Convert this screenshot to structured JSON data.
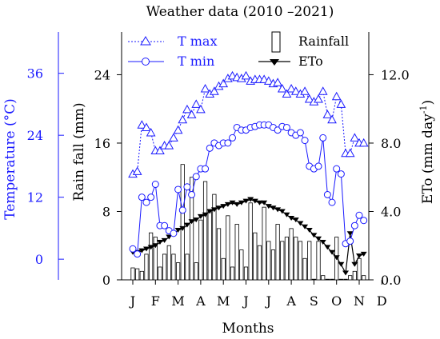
{
  "chart_data": {
    "type": "line",
    "title": "Weather data (2010 –2021)",
    "xlabel": "Months",
    "x_tick_labels": [
      "J",
      "F",
      "M",
      "A",
      "M",
      "J",
      "J",
      "A",
      "S",
      "O",
      "N",
      "D"
    ],
    "temp_axis": {
      "label": "Temperature (°C)",
      "ticks": [
        0,
        12,
        24,
        36
      ],
      "range": [
        -4,
        44
      ],
      "color": "#1a1aff"
    },
    "rain_axis": {
      "label": "Rain fall (mm)",
      "ticks": [
        0,
        8,
        16,
        24
      ],
      "range": [
        0,
        29
      ]
    },
    "eto_axis": {
      "label_main": "ETo (mm day",
      "label_sup": "-1",
      "label_close": ")",
      "ticks": [
        "0.0",
        "4.0",
        "8.0",
        "12.0"
      ],
      "tick_values": [
        0,
        4,
        8,
        12
      ],
      "range": [
        0,
        14.5
      ]
    },
    "legend": {
      "tmax": "T max",
      "tmin": "T min",
      "rainfall": "Rainfall",
      "eto": "ETo"
    },
    "colors": {
      "temperature": "#1a1aff",
      "eto": "#000000",
      "rainfall_fill": "#ffffff"
    },
    "series": [
      {
        "name": "T max",
        "axis": "temperature",
        "x": [
          1.0,
          1.2,
          1.4,
          1.6,
          1.8,
          2.0,
          2.2,
          2.4,
          2.6,
          2.8,
          3.0,
          3.2,
          3.4,
          3.6,
          3.8,
          4.0,
          4.2,
          4.4,
          4.6,
          4.8,
          5.0,
          5.2,
          5.4,
          5.6,
          5.8,
          6.0,
          6.2,
          6.4,
          6.6,
          6.8,
          7.0,
          7.2,
          7.4,
          7.6,
          7.8,
          8.0,
          8.2,
          8.4,
          8.6,
          8.8,
          9.0,
          9.2,
          9.4,
          9.6,
          9.8,
          10.0,
          10.2,
          10.4,
          10.6,
          10.8,
          11.0,
          11.2
        ],
        "values": [
          16.5,
          17.0,
          26.0,
          25.5,
          24.5,
          21.0,
          21.0,
          22.0,
          22.0,
          23.5,
          25.0,
          27.0,
          29.0,
          28.0,
          30.0,
          29.0,
          33.0,
          32.0,
          32.5,
          33.5,
          34.0,
          35.0,
          35.5,
          35.2,
          35.0,
          35.5,
          34.5,
          34.8,
          34.8,
          34.8,
          34.5,
          34.0,
          34.2,
          33.0,
          32.0,
          33.0,
          32.5,
          32.0,
          32.5,
          31.0,
          30.5,
          31.0,
          32.5,
          28.0,
          27.0,
          31.5,
          30.0,
          20.5,
          20.5,
          23.5,
          22.5,
          22.5
        ],
        "line_style": "dotted"
      },
      {
        "name": "T min",
        "axis": "temperature",
        "x": [
          1.0,
          1.2,
          1.4,
          1.6,
          1.8,
          2.0,
          2.2,
          2.4,
          2.6,
          2.8,
          3.0,
          3.2,
          3.4,
          3.6,
          3.8,
          4.0,
          4.2,
          4.4,
          4.6,
          4.8,
          5.0,
          5.2,
          5.4,
          5.6,
          5.8,
          6.0,
          6.2,
          6.4,
          6.6,
          6.8,
          7.0,
          7.2,
          7.4,
          7.6,
          7.8,
          8.0,
          8.2,
          8.4,
          8.6,
          8.8,
          9.0,
          9.2,
          9.4,
          9.6,
          9.8,
          10.0,
          10.2,
          10.4,
          10.6,
          10.8,
          11.0,
          11.2
        ],
        "values": [
          2.0,
          1.0,
          12.0,
          11.0,
          12.0,
          14.5,
          6.5,
          6.5,
          5.5,
          5.0,
          13.5,
          9.5,
          14.0,
          12.5,
          16.0,
          17.5,
          17.5,
          21.5,
          22.5,
          22.0,
          22.5,
          22.5,
          23.5,
          25.5,
          25.0,
          25.0,
          25.5,
          25.7,
          26.0,
          26.0,
          26.0,
          25.5,
          25.0,
          25.7,
          25.5,
          24.5,
          24.0,
          24.5,
          23.0,
          18.0,
          17.5,
          18.0,
          23.5,
          12.5,
          11.0,
          17.5,
          16.5,
          3.0,
          3.5,
          6.5,
          8.5,
          7.5
        ],
        "line_style": "solid"
      },
      {
        "name": "ETo",
        "axis": "eto",
        "x": [
          1.0,
          1.2,
          1.4,
          1.6,
          1.8,
          2.0,
          2.2,
          2.4,
          2.6,
          2.8,
          3.0,
          3.2,
          3.4,
          3.6,
          3.8,
          4.0,
          4.2,
          4.4,
          4.6,
          4.8,
          5.0,
          5.2,
          5.4,
          5.6,
          5.8,
          6.0,
          6.2,
          6.4,
          6.6,
          6.8,
          7.0,
          7.2,
          7.4,
          7.6,
          7.8,
          8.0,
          8.2,
          8.4,
          8.6,
          8.8,
          9.0,
          9.2,
          9.4,
          9.6,
          9.8,
          10.0,
          10.2,
          10.4,
          10.6,
          10.8,
          11.0,
          11.2
        ],
        "values": [
          1.6,
          1.6,
          1.7,
          1.8,
          1.9,
          2.0,
          2.2,
          2.3,
          2.5,
          2.7,
          2.9,
          3.0,
          3.2,
          3.4,
          3.5,
          3.7,
          3.8,
          4.0,
          4.1,
          4.2,
          4.3,
          4.4,
          4.5,
          4.4,
          4.5,
          4.6,
          4.7,
          4.6,
          4.5,
          4.5,
          4.3,
          4.2,
          4.1,
          4.0,
          3.8,
          3.6,
          3.5,
          3.3,
          3.1,
          2.9,
          2.6,
          2.4,
          2.2,
          1.9,
          1.6,
          1.3,
          0.9,
          0.4,
          2.7,
          0.9,
          1.4,
          1.5
        ],
        "line_style": "solid"
      },
      {
        "name": "Rainfall",
        "axis": "rain",
        "type": "bar",
        "x": [
          1.0,
          1.2,
          1.4,
          1.6,
          1.8,
          2.0,
          2.2,
          2.4,
          2.6,
          2.8,
          3.0,
          3.2,
          3.4,
          3.6,
          3.8,
          4.0,
          4.2,
          4.4,
          4.6,
          4.8,
          5.0,
          5.2,
          5.4,
          5.6,
          5.8,
          6.0,
          6.2,
          6.4,
          6.6,
          6.8,
          7.0,
          7.2,
          7.4,
          7.6,
          7.8,
          8.0,
          8.2,
          8.4,
          8.6,
          8.8,
          9.0,
          9.2,
          9.4,
          9.6,
          9.8,
          10.0,
          10.2,
          10.4,
          10.6,
          10.8,
          11.0,
          11.2
        ],
        "values": [
          1.4,
          1.3,
          1.0,
          3.0,
          5.5,
          5.0,
          1.5,
          3.0,
          4.0,
          3.0,
          2.0,
          13.5,
          3.0,
          12.0,
          2.0,
          7.0,
          11.5,
          8.0,
          10.0,
          6.0,
          2.5,
          7.5,
          1.5,
          6.5,
          3.5,
          1.5,
          9.0,
          5.5,
          4.0,
          8.5,
          4.5,
          3.5,
          6.5,
          4.5,
          5.0,
          6.0,
          5.0,
          4.5,
          2.5,
          4.5,
          0.0,
          4.5,
          0.5,
          0.0,
          0.0,
          5.0,
          0.0,
          0.0,
          0.5,
          1.0,
          2.5,
          0.5
        ]
      }
    ]
  }
}
